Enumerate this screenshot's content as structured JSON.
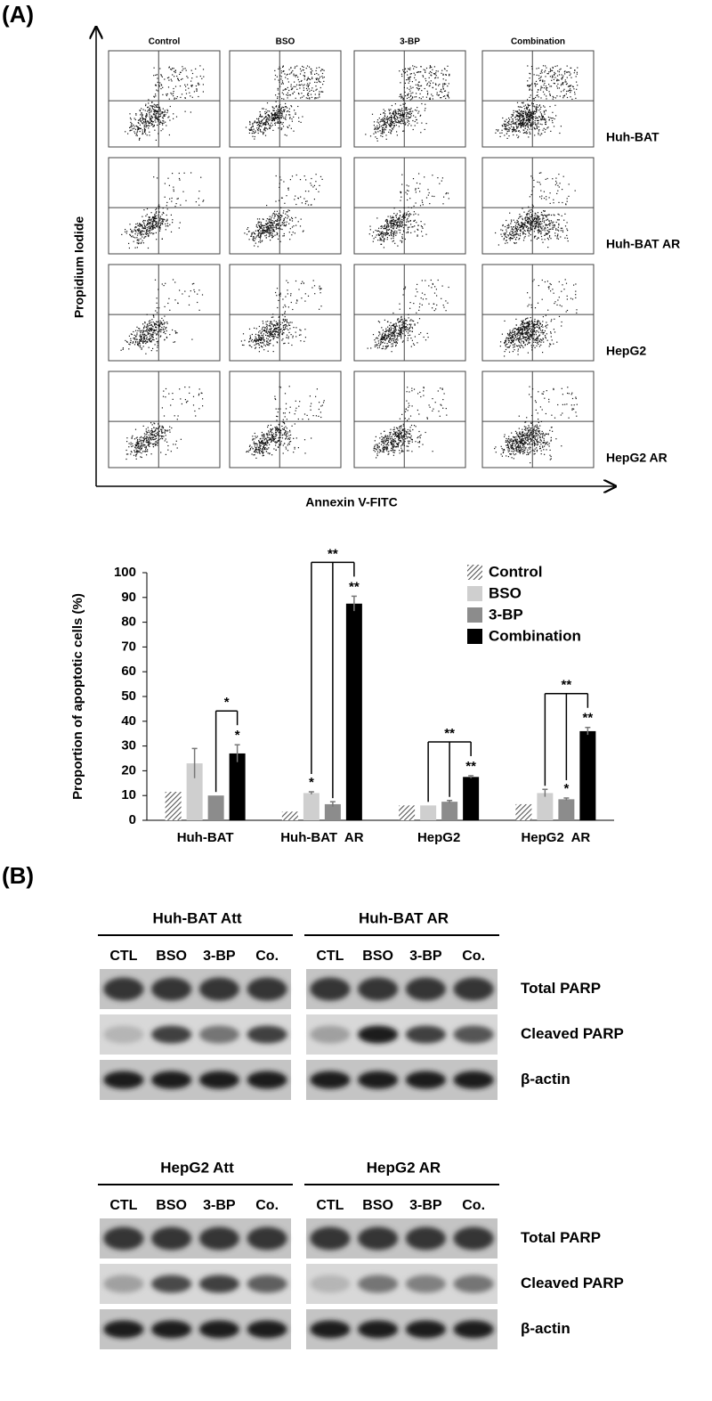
{
  "panel_a": {
    "label": "(A)",
    "columns": [
      "Control",
      "BSO",
      "3-BP",
      "Combination"
    ],
    "rows": [
      "Huh-BAT",
      "Huh-BAT AR",
      "HepG2",
      "HepG2 AR"
    ],
    "y_axis_label": "Propidium Iodide",
    "x_axis_label": "Annexin V-FITC"
  },
  "chart_data": {
    "type": "bar",
    "y_label": "Proportion of apoptotic cells (%)",
    "categories": [
      "Huh-BAT",
      "Huh-BAT  AR",
      "HepG2",
      "HepG2  AR"
    ],
    "series": [
      {
        "name": "Control",
        "color": "#555555",
        "hatch": true,
        "values": [
          11.5,
          3.5,
          6,
          6.5
        ],
        "errors": [
          null,
          null,
          null,
          null
        ],
        "annotations": [
          null,
          null,
          null,
          null
        ]
      },
      {
        "name": "BSO",
        "color": "#cfcfcf",
        "values": [
          23,
          11,
          6,
          11
        ],
        "errors": [
          6,
          0.5,
          null,
          1.5
        ],
        "annotations": [
          null,
          "*",
          null,
          null
        ]
      },
      {
        "name": "3-BP",
        "color": "#8c8c8c",
        "values": [
          10,
          6.5,
          7.5,
          8.5
        ],
        "errors": [
          null,
          1,
          0.5,
          0.5
        ],
        "annotations": [
          null,
          null,
          null,
          "*"
        ]
      },
      {
        "name": "Combination",
        "color": "#000000",
        "values": [
          27,
          87.5,
          17.5,
          36
        ],
        "errors": [
          3.5,
          3,
          0.5,
          1.5
        ],
        "annotations": [
          "*",
          "**",
          "**",
          "**"
        ]
      }
    ],
    "comparisons": [
      {
        "label": "*",
        "with": [
          "3-BP"
        ]
      },
      {
        "label": "**",
        "with": [
          "BSO",
          "3-BP"
        ]
      },
      {
        "label": "**",
        "with": [
          "BSO",
          "3-BP"
        ]
      },
      {
        "label": "**",
        "with": [
          "BSO",
          "3-BP"
        ]
      }
    ],
    "ylim": [
      0,
      100
    ],
    "yticks": [
      0,
      10,
      20,
      30,
      40,
      50,
      60,
      70,
      80,
      90,
      100
    ],
    "legend": "top-right"
  },
  "panel_b": {
    "label": "(B)",
    "rows": [
      "Total PARP",
      "Cleaved PARP",
      "β-actin"
    ],
    "blots": [
      {
        "title": "Huh-BAT Att",
        "lanes": [
          "CTL",
          "BSO",
          "3-BP",
          "Co."
        ]
      },
      {
        "title": "Huh-BAT AR",
        "lanes": [
          "CTL",
          "BSO",
          "3-BP",
          "Co."
        ]
      },
      {
        "title": "HepG2 Att",
        "lanes": [
          "CTL",
          "BSO",
          "3-BP",
          "Co."
        ]
      },
      {
        "title": "HepG2 AR",
        "lanes": [
          "CTL",
          "BSO",
          "3-BP",
          "Co."
        ]
      }
    ]
  }
}
